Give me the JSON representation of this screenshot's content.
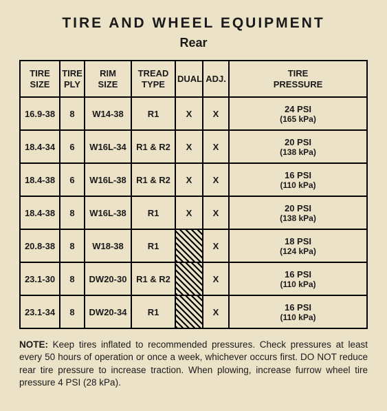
{
  "title": "TIRE AND WHEEL EQUIPMENT",
  "subtitle": "Rear",
  "headers": {
    "tire_size": "TIRE\nSIZE",
    "tire_ply": "TIRE\nPLY",
    "rim_size": "RIM\nSIZE",
    "tread_type": "TREAD\nTYPE",
    "dual": "DUAL",
    "adj": "ADJ.",
    "tire_pressure": "TIRE\nPRESSURE"
  },
  "rows": [
    {
      "tire_size": "16.9-38",
      "tire_ply": "8",
      "rim_size": "W14-38",
      "tread_type": "R1",
      "dual": "X",
      "adj": "X",
      "press_psi": "24 PSI",
      "press_kpa": "(165 kPa)",
      "dual_hatched": false
    },
    {
      "tire_size": "18.4-34",
      "tire_ply": "6",
      "rim_size": "W16L-34",
      "tread_type": "R1 & R2",
      "dual": "X",
      "adj": "X",
      "press_psi": "20 PSI",
      "press_kpa": "(138 kPa)",
      "dual_hatched": false
    },
    {
      "tire_size": "18.4-38",
      "tire_ply": "6",
      "rim_size": "W16L-38",
      "tread_type": "R1 & R2",
      "dual": "X",
      "adj": "X",
      "press_psi": "16 PSI",
      "press_kpa": "(110 kPa)",
      "dual_hatched": false
    },
    {
      "tire_size": "18.4-38",
      "tire_ply": "8",
      "rim_size": "W16L-38",
      "tread_type": "R1",
      "dual": "X",
      "adj": "X",
      "press_psi": "20 PSI",
      "press_kpa": "(138 kPa)",
      "dual_hatched": false
    },
    {
      "tire_size": "20.8-38",
      "tire_ply": "8",
      "rim_size": "W18-38",
      "tread_type": "R1",
      "dual": "",
      "adj": "X",
      "press_psi": "18 PSI",
      "press_kpa": "(124 kPa)",
      "dual_hatched": true
    },
    {
      "tire_size": "23.1-30",
      "tire_ply": "8",
      "rim_size": "DW20-30",
      "tread_type": "R1 & R2",
      "dual": "",
      "adj": "X",
      "press_psi": "16 PSI",
      "press_kpa": "(110 kPa)",
      "dual_hatched": true
    },
    {
      "tire_size": "23.1-34",
      "tire_ply": "8",
      "rim_size": "DW20-34",
      "tread_type": "R1",
      "dual": "",
      "adj": "X",
      "press_psi": "16 PSI",
      "press_kpa": "(110 kPa)",
      "dual_hatched": true
    }
  ],
  "note": {
    "label": "NOTE:",
    "text": " Keep tires inflated to recommended pressures. Check pressures at least every 50 hours of operation or once a week, whichever occurs first. DO NOT reduce rear tire pressure to increase traction. When plowing, increase furrow wheel tire pressure 4 PSI (28 kPa)."
  },
  "style": {
    "background": "#ece2c8",
    "border_color": "#000000",
    "text_color": "#1a1a1a",
    "title_fontsize": 21,
    "subtitle_fontsize": 18,
    "cell_fontsize": 13,
    "note_fontsize": 13.5,
    "hatched_fill": "repeating-linear-gradient(45deg, #000 0 2px, #ece2c8 2px 6px)"
  }
}
